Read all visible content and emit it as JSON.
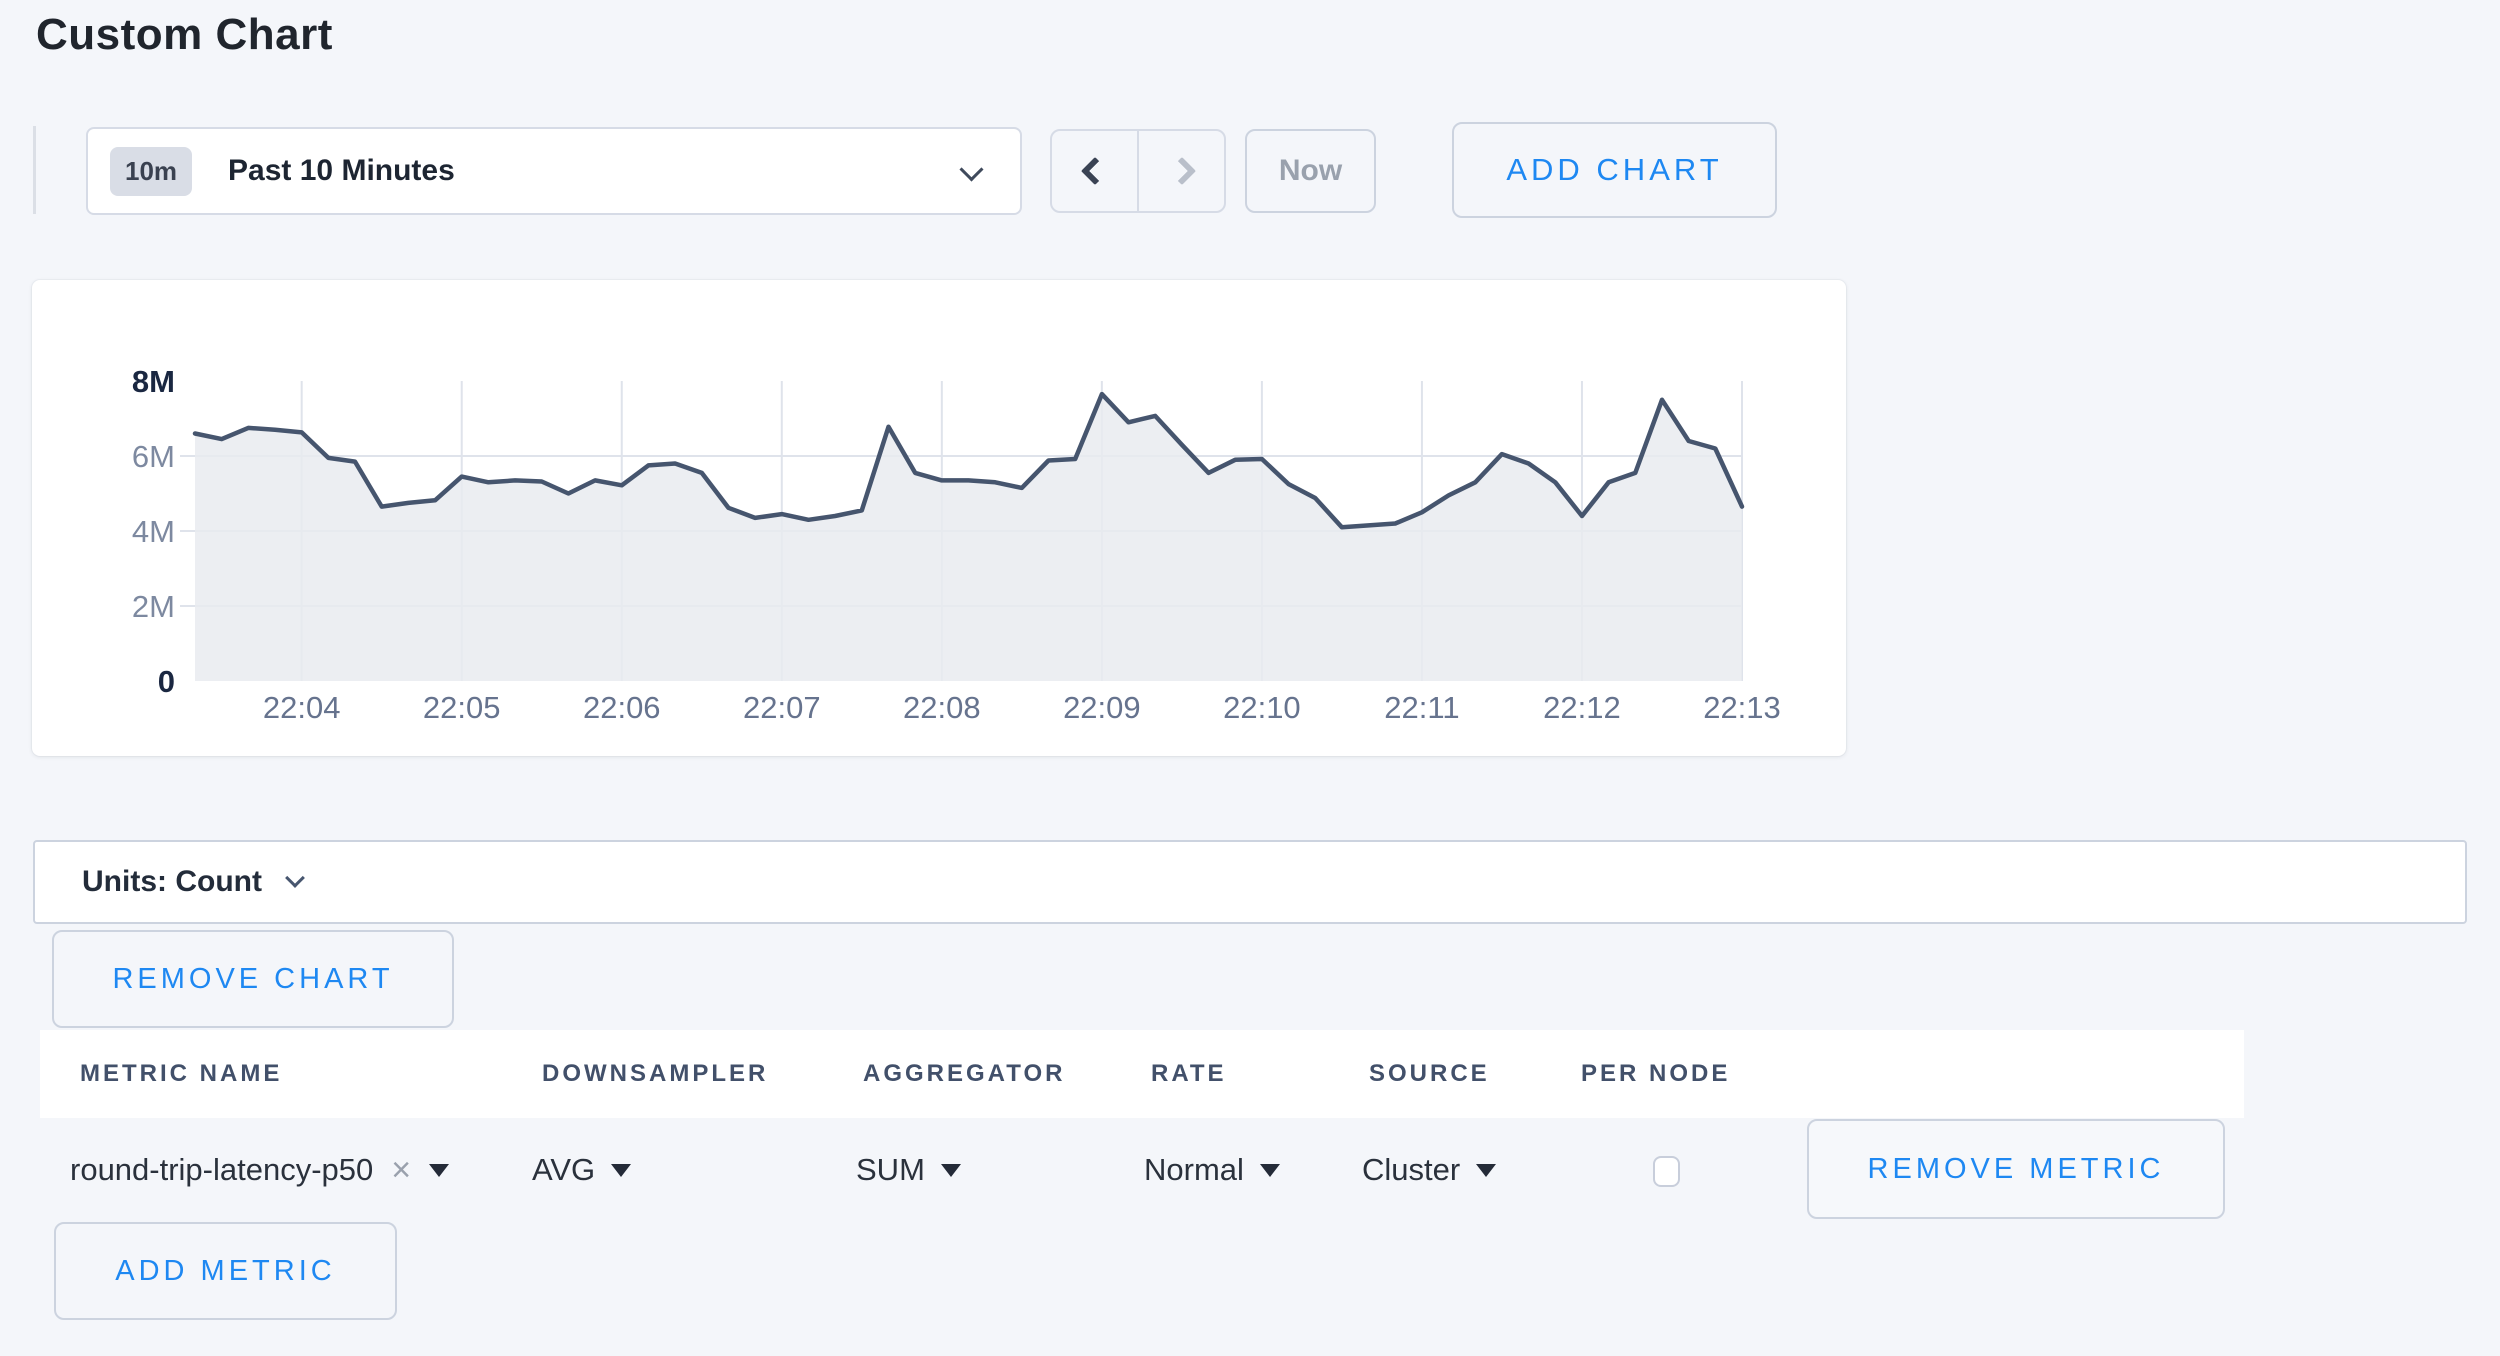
{
  "page": {
    "title": "Custom Chart"
  },
  "colors": {
    "accent": "#1e88f2",
    "line": "#46556e",
    "fill": "#e9ebf0",
    "grid": "#dfe3eb",
    "bg": "#f4f6fa",
    "axis_bold": "#1a2741",
    "axis_minor": "#7d89a0",
    "axis_x": "#66738e"
  },
  "toolbar": {
    "time_scale_badge": "10m",
    "time_scale_label": "Past 10 Minutes",
    "now_label": "Now",
    "add_chart_label": "ADD CHART"
  },
  "chart_data": {
    "type": "area",
    "title": "",
    "xlabel": "",
    "ylabel": "",
    "legend": false,
    "grid": true,
    "unit_suffix": "M",
    "ylim": [
      0,
      8
    ],
    "y_ticks": [
      {
        "label": "0",
        "value": 0,
        "bold": true
      },
      {
        "label": "2M",
        "value": 2,
        "bold": false
      },
      {
        "label": "4M",
        "value": 4,
        "bold": false
      },
      {
        "label": "6M",
        "value": 6,
        "bold": false
      },
      {
        "label": "8M",
        "value": 8,
        "bold": true
      }
    ],
    "x_ticks": [
      "22:04",
      "22:05",
      "22:06",
      "22:07",
      "22:08",
      "22:09",
      "22:10",
      "22:11",
      "22:12",
      "22:13"
    ],
    "x_start_time": "22:03:20",
    "x_step_seconds": 10,
    "x_first_tick_index": 4,
    "x_points_per_tick": 6,
    "series": [
      {
        "name": "round-trip-latency-p50",
        "values_millions": [
          6.6,
          6.45,
          6.75,
          6.7,
          6.63,
          5.95,
          5.85,
          4.65,
          4.75,
          4.82,
          5.45,
          5.3,
          5.35,
          5.32,
          5.0,
          5.35,
          5.22,
          5.75,
          5.8,
          5.55,
          4.62,
          4.35,
          4.45,
          4.3,
          4.4,
          4.55,
          6.78,
          5.55,
          5.35,
          5.35,
          5.3,
          5.15,
          5.88,
          5.92,
          7.65,
          6.9,
          7.07,
          6.3,
          5.55,
          5.9,
          5.92,
          5.25,
          4.88,
          4.1,
          4.15,
          4.2,
          4.5,
          4.95,
          5.3,
          6.05,
          5.8,
          5.3,
          4.4,
          5.3,
          5.55,
          7.5,
          6.4,
          6.2,
          4.65
        ]
      }
    ]
  },
  "units_bar": {
    "label": "Units: Count"
  },
  "chart_actions": {
    "remove_chart_label": "REMOVE CHART"
  },
  "metrics_table": {
    "headers": [
      "METRIC NAME",
      "DOWNSAMPLER",
      "AGGREGATOR",
      "RATE",
      "SOURCE",
      "PER NODE"
    ],
    "rows": [
      {
        "metric_name": "round-trip-latency-p50",
        "remove_tag_icon": "×",
        "downsampler": "AVG",
        "aggregator": "SUM",
        "rate": "Normal",
        "source": "Cluster",
        "per_node_checked": false
      }
    ],
    "remove_metric_label": "REMOVE METRIC",
    "add_metric_label": "ADD METRIC"
  }
}
